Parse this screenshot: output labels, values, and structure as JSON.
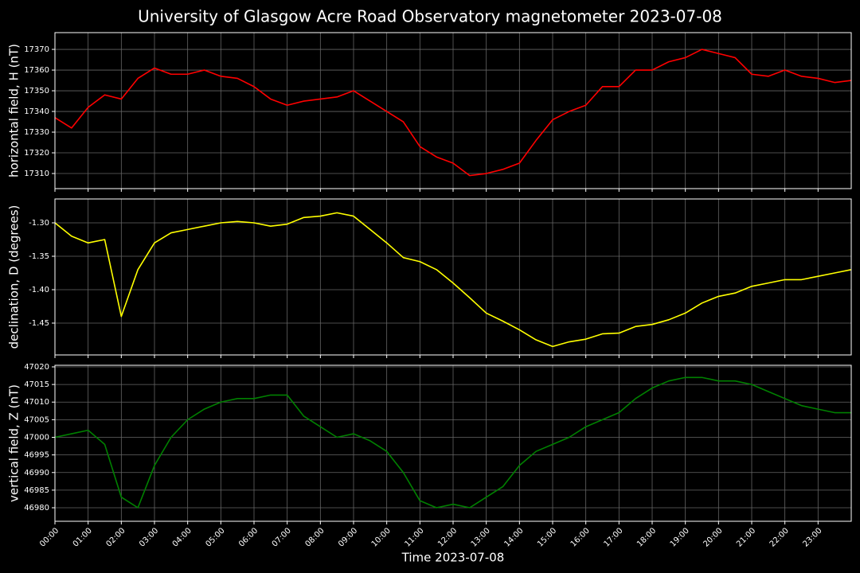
{
  "chart_data": [
    {
      "type": "line",
      "title": "University of Glasgow Acre Road Observatory magnetometer 2023-07-08",
      "ylabel": "horizontal field, H (nT)",
      "color": "#ff0000",
      "grid": true,
      "x": [
        0,
        0.5,
        1,
        1.5,
        2,
        2.5,
        3,
        3.5,
        4,
        4.5,
        5,
        5.5,
        6,
        6.5,
        7,
        7.5,
        8,
        8.5,
        9,
        9.5,
        10,
        10.5,
        11,
        11.5,
        12,
        12.5,
        13,
        13.5,
        14,
        14.5,
        15,
        15.5,
        16,
        16.5,
        17,
        17.5,
        18,
        18.5,
        19,
        19.5,
        20,
        20.5,
        21,
        21.5,
        22,
        22.5,
        23,
        23.5,
        24
      ],
      "values": [
        17337,
        17332,
        17342,
        17348,
        17346,
        17356,
        17361,
        17358,
        17358,
        17360,
        17357,
        17356,
        17352,
        17346,
        17343,
        17345,
        17346,
        17347,
        17350,
        17345,
        17340,
        17335,
        17323,
        17318,
        17315,
        17309,
        17310,
        17312,
        17315,
        17326,
        17336,
        17340,
        17343,
        17352,
        17352,
        17360,
        17360,
        17364,
        17366,
        17370,
        17368,
        17366,
        17358,
        17357,
        17360,
        17357,
        17356,
        17354,
        17355
      ],
      "xlim": [
        0,
        24
      ],
      "xticks": [
        0,
        1,
        2,
        3,
        4,
        5,
        6,
        7,
        8,
        9,
        10,
        11,
        12,
        13,
        14,
        15,
        16,
        17,
        18,
        19,
        20,
        21,
        22,
        23
      ],
      "ylim": [
        17302.7,
        17378.1
      ],
      "yticks": [
        17310,
        17320,
        17330,
        17340,
        17350,
        17360,
        17370
      ]
    },
    {
      "type": "line",
      "ylabel": "declination, D (degrees)",
      "color": "#ffff00",
      "grid": true,
      "x": [
        0,
        0.5,
        1,
        1.5,
        2,
        2.5,
        3,
        3.5,
        4,
        4.5,
        5,
        5.5,
        6,
        6.5,
        7,
        7.5,
        8,
        8.5,
        9,
        9.5,
        10,
        10.5,
        11,
        11.5,
        12,
        12.5,
        13,
        13.5,
        14,
        14.5,
        15,
        15.5,
        16,
        16.5,
        17,
        17.5,
        18,
        18.5,
        19,
        19.5,
        20,
        20.5,
        21,
        21.5,
        22,
        22.5,
        23,
        23.5,
        24
      ],
      "values": [
        -1.3,
        -1.32,
        -1.33,
        -1.325,
        -1.44,
        -1.37,
        -1.33,
        -1.315,
        -1.31,
        -1.305,
        -1.3,
        -1.298,
        -1.3,
        -1.305,
        -1.302,
        -1.292,
        -1.29,
        -1.285,
        -1.29,
        -1.31,
        -1.33,
        -1.352,
        -1.358,
        -1.37,
        -1.39,
        -1.412,
        -1.435,
        -1.447,
        -1.46,
        -1.475,
        -1.485,
        -1.478,
        -1.474,
        -1.466,
        -1.465,
        -1.455,
        -1.452,
        -1.445,
        -1.435,
        -1.42,
        -1.41,
        -1.405,
        -1.395,
        -1.39,
        -1.385,
        -1.385,
        -1.38,
        -1.375,
        -1.37
      ],
      "xlim": [
        0,
        24
      ],
      "xticks": [
        0,
        1,
        2,
        3,
        4,
        5,
        6,
        7,
        8,
        9,
        10,
        11,
        12,
        13,
        14,
        15,
        16,
        17,
        18,
        19,
        20,
        21,
        22,
        23
      ],
      "ylim": [
        -1.4976,
        -1.2643
      ],
      "yticks": [
        {
          "value": -1.3,
          "label": "-1.30"
        },
        {
          "value": -1.35,
          "label": "-1.35"
        },
        {
          "value": -1.4,
          "label": "-1.40"
        },
        {
          "value": -1.45,
          "label": "-1.45"
        }
      ]
    },
    {
      "type": "line",
      "ylabel": "vertical field, Z (nT)",
      "xlabel": "Time 2023-07-08",
      "color": "#008000",
      "grid": true,
      "x": [
        0,
        0.5,
        1,
        1.5,
        2,
        2.5,
        3,
        3.5,
        4,
        4.5,
        5,
        5.5,
        6,
        6.5,
        7,
        7.5,
        8,
        8.5,
        9,
        9.5,
        10,
        10.5,
        11,
        11.5,
        12,
        12.5,
        13,
        13.5,
        14,
        14.5,
        15,
        15.5,
        16,
        16.5,
        17,
        17.5,
        18,
        18.5,
        19,
        19.5,
        20,
        20.5,
        21,
        21.5,
        22,
        22.5,
        23,
        23.5,
        24
      ],
      "values": [
        47000,
        47001,
        47002,
        46998,
        46983,
        46980,
        46992,
        47000,
        47005,
        47008,
        47010,
        47011,
        47011,
        47012,
        47012,
        47006,
        47003,
        47000,
        47001,
        46999,
        46996,
        46990,
        46982,
        46980,
        46981,
        46980,
        46983,
        46986,
        46992,
        46996,
        46998,
        47000,
        47003,
        47005,
        47007,
        47011,
        47014,
        47016,
        47017,
        47017,
        47016,
        47016,
        47015,
        47013,
        47011,
        47009,
        47008,
        47007,
        47007
      ],
      "xlim": [
        0,
        24
      ],
      "xticks": [
        {
          "value": 0,
          "label": "00:00"
        },
        {
          "value": 1,
          "label": "01:00"
        },
        {
          "value": 2,
          "label": "02:00"
        },
        {
          "value": 3,
          "label": "03:00"
        },
        {
          "value": 4,
          "label": "04:00"
        },
        {
          "value": 5,
          "label": "05:00"
        },
        {
          "value": 6,
          "label": "06:00"
        },
        {
          "value": 7,
          "label": "07:00"
        },
        {
          "value": 8,
          "label": "08:00"
        },
        {
          "value": 9,
          "label": "09:00"
        },
        {
          "value": 10,
          "label": "10:00"
        },
        {
          "value": 11,
          "label": "11:00"
        },
        {
          "value": 12,
          "label": "12:00"
        },
        {
          "value": 13,
          "label": "13:00"
        },
        {
          "value": 14,
          "label": "14:00"
        },
        {
          "value": 15,
          "label": "15:00"
        },
        {
          "value": 16,
          "label": "16:00"
        },
        {
          "value": 17,
          "label": "17:00"
        },
        {
          "value": 18,
          "label": "18:00"
        },
        {
          "value": 19,
          "label": "19:00"
        },
        {
          "value": 20,
          "label": "20:00"
        },
        {
          "value": 21,
          "label": "21:00"
        },
        {
          "value": 22,
          "label": "22:00"
        },
        {
          "value": 23,
          "label": "23:00"
        }
      ],
      "ylim": [
        46976.16,
        47020.45
      ],
      "yticks": [
        46980,
        46985,
        46990,
        46995,
        47000,
        47005,
        47010,
        47015,
        47020
      ]
    }
  ]
}
